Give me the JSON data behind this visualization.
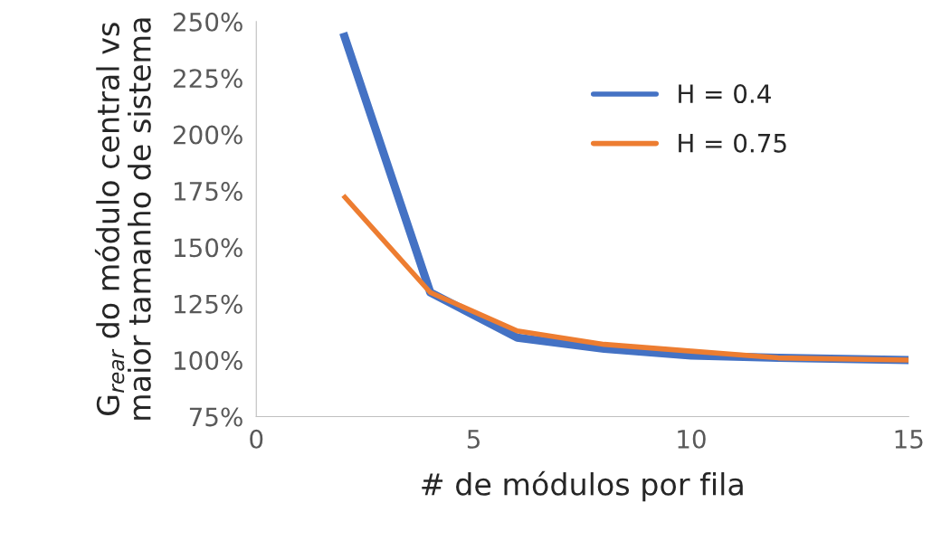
{
  "chart_data": {
    "type": "line",
    "xlabel": "# de módulos por fila",
    "ylabel": "G$_{rear}$ do módulo central vs\nmaior tamanho de sistema",
    "x": [
      2,
      4,
      6,
      8,
      10,
      12,
      15
    ],
    "series": [
      {
        "name": "H = 0.4",
        "color": "#4472c4",
        "values": [
          245,
          130,
          110,
          105,
          102,
          101,
          100
        ]
      },
      {
        "name": "H = 0.75",
        "color": "#ed7d31",
        "values": [
          173,
          130,
          113,
          107,
          104,
          101,
          100
        ]
      }
    ],
    "xlim": [
      0,
      15
    ],
    "xticks": [
      0,
      5,
      10,
      15
    ],
    "ylim": [
      75,
      250
    ],
    "yticks": [
      {
        "value": 75,
        "label": "75%"
      },
      {
        "value": 100,
        "label": "100%"
      },
      {
        "value": 125,
        "label": "125%"
      },
      {
        "value": 150,
        "label": "150%"
      },
      {
        "value": 175,
        "label": "175%"
      },
      {
        "value": 200,
        "label": "200%"
      },
      {
        "value": 225,
        "label": "225%"
      },
      {
        "value": 250,
        "label": "250%"
      }
    ],
    "grid": false,
    "legend": "top right",
    "marker": "none",
    "line_style": "solid"
  }
}
